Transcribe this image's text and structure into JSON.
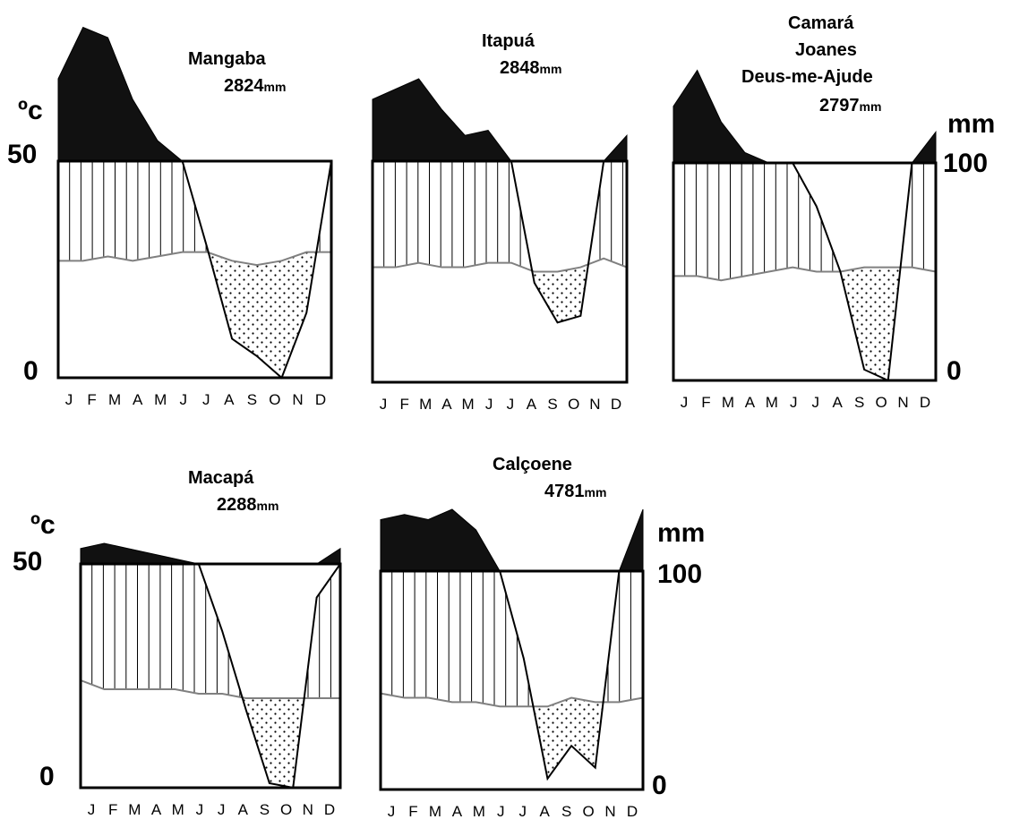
{
  "axis_labels": {
    "temperature_unit": "ºc",
    "temperature_max": "50",
    "temperature_min": "0",
    "precip_unit": "mm",
    "precip_max": "100",
    "precip_min": "0"
  },
  "colors": {
    "wet_excess": "#111111",
    "humid": "#000000",
    "temperature_line": "#808080",
    "frame": "#000000"
  },
  "chart_data": [
    {
      "type": "area",
      "station": "Mangaba",
      "precip_total": "2824",
      "precip_total_unit": "mm",
      "months": [
        "J",
        "F",
        "M",
        "A",
        "M",
        "J",
        "J",
        "A",
        "S",
        "O",
        "N",
        "D"
      ],
      "temperature_range": [
        0,
        50
      ],
      "precip_range": [
        0,
        100
      ],
      "temperature": [
        27,
        27,
        28,
        27,
        28,
        29,
        29,
        27,
        26,
        27,
        29,
        29
      ],
      "precipitation": [
        180,
        230,
        220,
        160,
        120,
        100,
        60,
        18,
        10,
        0,
        30,
        100
      ]
    },
    {
      "type": "area",
      "station": "Itapuá",
      "precip_total": "2848",
      "precip_total_unit": "mm",
      "months": [
        "J",
        "F",
        "M",
        "A",
        "M",
        "J",
        "J",
        "A",
        "S",
        "O",
        "N",
        "D"
      ],
      "temperature_range": [
        0,
        50
      ],
      "precip_range": [
        0,
        100
      ],
      "temperature": [
        26,
        26,
        27,
        26,
        26,
        27,
        27,
        25,
        25,
        26,
        28,
        26
      ],
      "precipitation": [
        160,
        170,
        180,
        150,
        125,
        130,
        100,
        45,
        27,
        30,
        100,
        125
      ]
    },
    {
      "type": "area",
      "station": "Camará Joanes Deus-me-Ajude",
      "precip_total": "2797",
      "precip_total_unit": "mm",
      "months": [
        "J",
        "F",
        "M",
        "A",
        "M",
        "J",
        "J",
        "A",
        "S",
        "O",
        "N",
        "D"
      ],
      "temperature_range": [
        0,
        50
      ],
      "precip_range": [
        0,
        100
      ],
      "temperature": [
        24,
        24,
        23,
        24,
        25,
        26,
        25,
        25,
        26,
        26,
        26,
        25
      ],
      "precipitation": [
        155,
        190,
        140,
        110,
        100,
        100,
        80,
        50,
        5,
        0,
        100,
        130
      ]
    },
    {
      "type": "area",
      "station": "Macapá",
      "precip_total": "2288",
      "precip_total_unit": "mm",
      "months": [
        "J",
        "F",
        "M",
        "A",
        "M",
        "J",
        "J",
        "A",
        "S",
        "O",
        "N",
        "D"
      ],
      "temperature_range": [
        0,
        50
      ],
      "precip_range": [
        0,
        100
      ],
      "temperature": [
        24,
        22,
        22,
        22,
        22,
        21,
        21,
        20,
        20,
        20,
        20,
        20
      ],
      "precipitation": [
        115,
        120,
        115,
        110,
        105,
        100,
        70,
        35,
        2,
        0,
        85,
        115
      ]
    },
    {
      "type": "area",
      "station": "Calçoene",
      "precip_total": "4781",
      "precip_total_unit": "mm",
      "months": [
        "J",
        "F",
        "M",
        "A",
        "M",
        "J",
        "J",
        "A",
        "S",
        "O",
        "N",
        "D"
      ],
      "temperature_range": [
        0,
        50
      ],
      "precip_range": [
        0,
        100
      ],
      "temperature": [
        22,
        21,
        21,
        20,
        20,
        19,
        19,
        19,
        21,
        20,
        20,
        21
      ],
      "precipitation": [
        150,
        155,
        150,
        160,
        140,
        100,
        60,
        5,
        20,
        10,
        100,
        160
      ]
    }
  ]
}
